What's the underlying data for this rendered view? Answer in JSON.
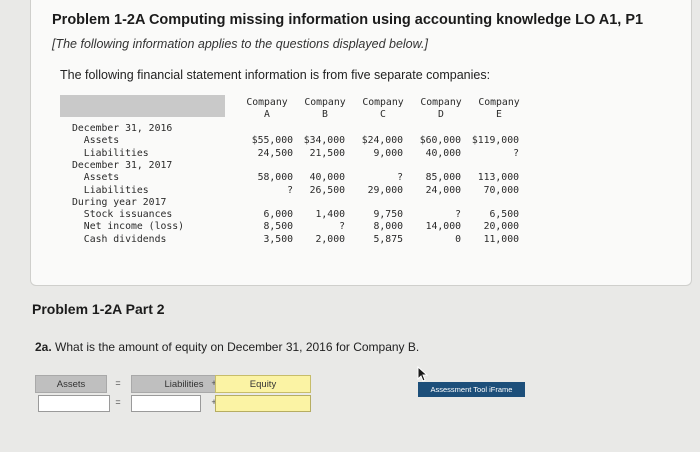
{
  "problem": {
    "title": "Problem 1-2A Computing missing information using accounting knowledge LO A1, P1",
    "note": "[The following information applies to the questions displayed below.]",
    "intro": "The following financial statement information is from five separate companies:"
  },
  "table": {
    "companies": [
      {
        "line1": "Company",
        "line2": "A"
      },
      {
        "line1": "Company",
        "line2": "B"
      },
      {
        "line1": "Company",
        "line2": "C"
      },
      {
        "line1": "Company",
        "line2": "D"
      },
      {
        "line1": "Company",
        "line2": "E"
      }
    ],
    "rows": [
      {
        "label": "December 31, 2016",
        "values": [
          "",
          "",
          "",
          "",
          ""
        ]
      },
      {
        "label": "  Assets",
        "values": [
          "$55,000",
          "$34,000",
          "$24,000",
          "$60,000",
          "$119,000"
        ]
      },
      {
        "label": "  Liabilities",
        "values": [
          "24,500",
          "21,500",
          "9,000",
          "40,000",
          "?"
        ]
      },
      {
        "label": "December 31, 2017",
        "values": [
          "",
          "",
          "",
          "",
          ""
        ]
      },
      {
        "label": "  Assets",
        "values": [
          "58,000",
          "40,000",
          "?",
          "85,000",
          "113,000"
        ]
      },
      {
        "label": "  Liabilities",
        "values": [
          "?",
          "26,500",
          "29,000",
          "24,000",
          "70,000"
        ]
      },
      {
        "label": "During year 2017",
        "values": [
          "",
          "",
          "",
          "",
          ""
        ]
      },
      {
        "label": "  Stock issuances",
        "values": [
          "6,000",
          "1,400",
          "9,750",
          "?",
          "6,500"
        ]
      },
      {
        "label": "  Net income (loss)",
        "values": [
          "8,500",
          "?",
          "8,000",
          "14,000",
          "20,000"
        ]
      },
      {
        "label": "  Cash dividends",
        "values": [
          "3,500",
          "2,000",
          "5,875",
          "0",
          "11,000"
        ]
      }
    ]
  },
  "part2": {
    "heading": "Problem 1-2A Part 2",
    "question_num": "2a.",
    "question_text": "What is the amount of equity on December 31, 2016 for Company B."
  },
  "equation": {
    "assets_label": "Assets",
    "eq_sign": "=",
    "liabilities_label": "Liabilities",
    "plus_sign": "+",
    "equity_label": "Equity",
    "assets_value": "",
    "liabilities_value": "",
    "equity_value": ""
  },
  "iframe_button": "Assessment Tool iFrame"
}
